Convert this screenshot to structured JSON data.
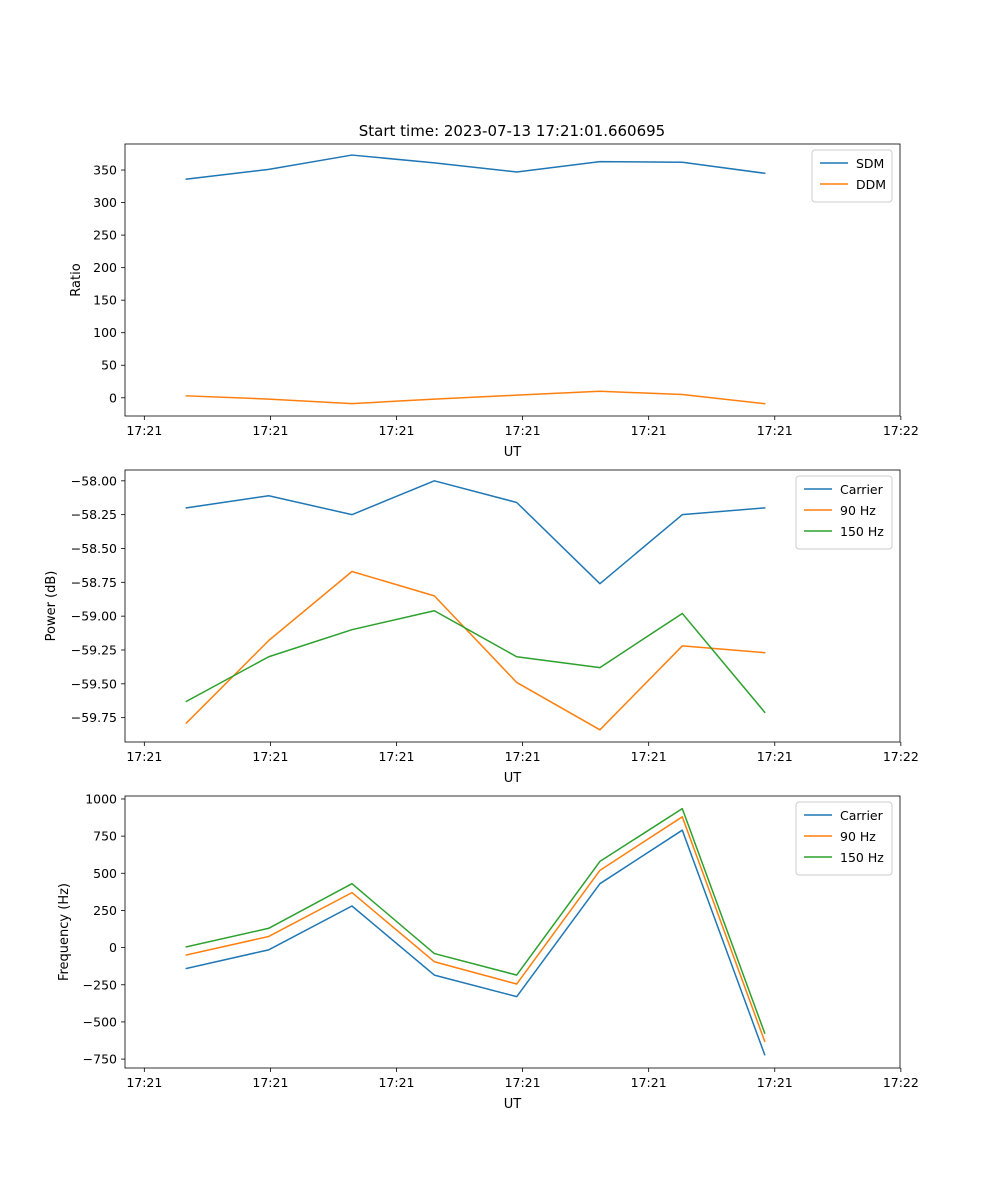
{
  "figure_title": "Start time: 2023-07-13 17:21:01.660695",
  "colors": {
    "c0": "#1f77b4",
    "c1": "#ff7f0e",
    "c2": "#2ca02c"
  },
  "chart_data": [
    {
      "type": "line",
      "title": "Start time: 2023-07-13 17:21:01.660695",
      "xlabel": "UT",
      "ylabel": "Ratio",
      "x_data_range": [
        -0.23,
        8.99
      ],
      "x_ticks": [
        0,
        1.5,
        3.0,
        4.5,
        6.0,
        7.5,
        9.0
      ],
      "x_tick_labels": [
        "17:21",
        "17:21",
        "17:21",
        "17:21",
        "17:21",
        "17:21",
        "17:22"
      ],
      "ylim": [
        -28,
        390
      ],
      "y_ticks": [
        0,
        50,
        100,
        150,
        200,
        250,
        300,
        350
      ],
      "y_tick_labels": [
        "0",
        "50",
        "100",
        "150",
        "200",
        "250",
        "300",
        "350"
      ],
      "x": [
        0.5,
        1.48,
        2.47,
        3.45,
        4.43,
        5.42,
        6.4,
        7.38
      ],
      "legend_position": "top-right",
      "series": [
        {
          "name": "SDM",
          "color": "#1f77b4",
          "values": [
            336,
            351,
            373,
            361,
            347,
            363,
            362,
            345
          ]
        },
        {
          "name": "DDM",
          "color": "#ff7f0e",
          "values": [
            3,
            -2,
            -9,
            -2,
            4,
            10,
            5,
            -9
          ]
        }
      ]
    },
    {
      "type": "line",
      "title": "",
      "xlabel": "UT",
      "ylabel": "Power (dB)",
      "x_data_range": [
        -0.23,
        8.99
      ],
      "x_ticks": [
        0,
        1.5,
        3.0,
        4.5,
        6.0,
        7.5,
        9.0
      ],
      "x_tick_labels": [
        "17:21",
        "17:21",
        "17:21",
        "17:21",
        "17:21",
        "17:21",
        "17:22"
      ],
      "ylim": [
        -59.93,
        -57.92
      ],
      "y_ticks": [
        -59.75,
        -59.5,
        -59.25,
        -59.0,
        -58.75,
        -58.5,
        -58.25,
        -58.0
      ],
      "y_tick_labels": [
        "−59.75",
        "−59.50",
        "−59.25",
        "−59.00",
        "−58.75",
        "−58.50",
        "−58.25",
        "−58.00"
      ],
      "x": [
        0.5,
        1.48,
        2.47,
        3.45,
        4.43,
        5.42,
        6.4,
        7.38
      ],
      "legend_position": "top-right",
      "series": [
        {
          "name": "Carrier",
          "color": "#1f77b4",
          "values": [
            -58.2,
            -58.11,
            -58.25,
            -58.0,
            -58.16,
            -58.76,
            -58.25,
            -58.2
          ]
        },
        {
          "name": "90 Hz",
          "color": "#ff7f0e",
          "values": [
            -59.79,
            -59.18,
            -58.67,
            -58.85,
            -59.49,
            -59.84,
            -59.22,
            -59.27
          ]
        },
        {
          "name": "150 Hz",
          "color": "#2ca02c",
          "values": [
            -59.63,
            -59.3,
            -59.1,
            -58.96,
            -59.3,
            -59.38,
            -58.98,
            -59.71
          ]
        }
      ]
    },
    {
      "type": "line",
      "title": "",
      "xlabel": "UT",
      "ylabel": "Frequency (Hz)",
      "x_data_range": [
        -0.23,
        8.99
      ],
      "x_ticks": [
        0,
        1.5,
        3.0,
        4.5,
        6.0,
        7.5,
        9.0
      ],
      "x_tick_labels": [
        "17:21",
        "17:21",
        "17:21",
        "17:21",
        "17:21",
        "17:21",
        "17:22"
      ],
      "ylim": [
        -810,
        1020
      ],
      "y_ticks": [
        -750,
        -500,
        -250,
        0,
        250,
        500,
        750,
        1000
      ],
      "y_tick_labels": [
        "−750",
        "−500",
        "−250",
        "0",
        "250",
        "500",
        "750",
        "1000"
      ],
      "x": [
        0.5,
        1.48,
        2.47,
        3.45,
        4.43,
        5.42,
        6.4,
        7.38
      ],
      "legend_position": "top-right",
      "series": [
        {
          "name": "Carrier",
          "color": "#1f77b4",
          "values": [
            -140,
            -15,
            280,
            -185,
            -330,
            430,
            790,
            -720
          ]
        },
        {
          "name": "90 Hz",
          "color": "#ff7f0e",
          "values": [
            -50,
            75,
            370,
            -95,
            -245,
            520,
            880,
            -630
          ]
        },
        {
          "name": "150 Hz",
          "color": "#2ca02c",
          "values": [
            5,
            130,
            430,
            -40,
            -185,
            580,
            935,
            -575
          ]
        }
      ]
    }
  ]
}
